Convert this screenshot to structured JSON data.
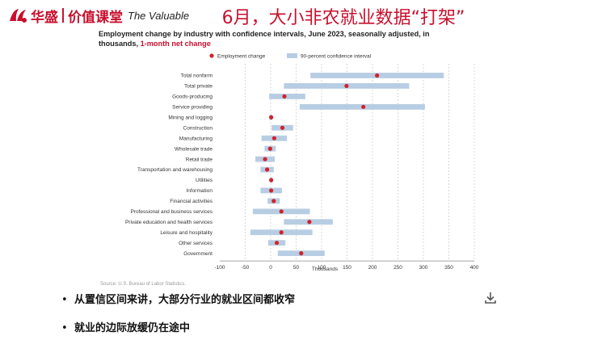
{
  "header": {
    "logo_cn_1": "华盛",
    "logo_cn_2": "价值课堂",
    "logo_en": "The Valuable",
    "slide_title": "6月，大小非农就业数据“打架”"
  },
  "chart_data": {
    "type": "dot-range",
    "title_part1": "Employment change by industry with confidence intervals, June 2023, seasonally adjusted, in thousands, ",
    "title_part2": "1-month net change",
    "legend": [
      "Employment change",
      "90-percent confidence interval"
    ],
    "xlabel": "Thousands",
    "xlim": [
      -100,
      400
    ],
    "xticks": [
      -100,
      -50,
      0,
      50,
      100,
      150,
      200,
      250,
      300,
      350,
      400
    ],
    "source": "Source: U.S. Bureau of Labor Statistics.",
    "categories": [
      "Total nonfarm",
      "Total private",
      "Goods-producing",
      "Service providing",
      "Mining and logging",
      "Construction",
      "Manufacturing",
      "Wholesale trade",
      "Retail trade",
      "Transportation and warehousing",
      "Utilities",
      "Information",
      "Financial activities",
      "Professional and business services",
      "Private education and health services",
      "Leisure and hospitality",
      "Other services",
      "Government"
    ],
    "values": [
      209,
      149,
      27,
      182,
      1,
      23,
      7,
      -1,
      -11,
      -7,
      1,
      1,
      6,
      21,
      76,
      21,
      12,
      60
    ],
    "ci_low": [
      78,
      26,
      -3,
      57,
      -2,
      2,
      -18,
      -12,
      -30,
      -20,
      -1,
      -20,
      -6,
      -35,
      26,
      -40,
      -5,
      14
    ],
    "ci_high": [
      340,
      272,
      68,
      303,
      3,
      44,
      32,
      10,
      8,
      6,
      3,
      22,
      18,
      77,
      122,
      82,
      29,
      106
    ],
    "point_color": "#d2232a",
    "ci_color": "#b7cde3"
  },
  "bullets": [
    "从置信区间来讲，大部分行业的就业区间都收窄",
    "就业的边际放缓仍在途中"
  ],
  "icons": {
    "download": "download-icon"
  }
}
